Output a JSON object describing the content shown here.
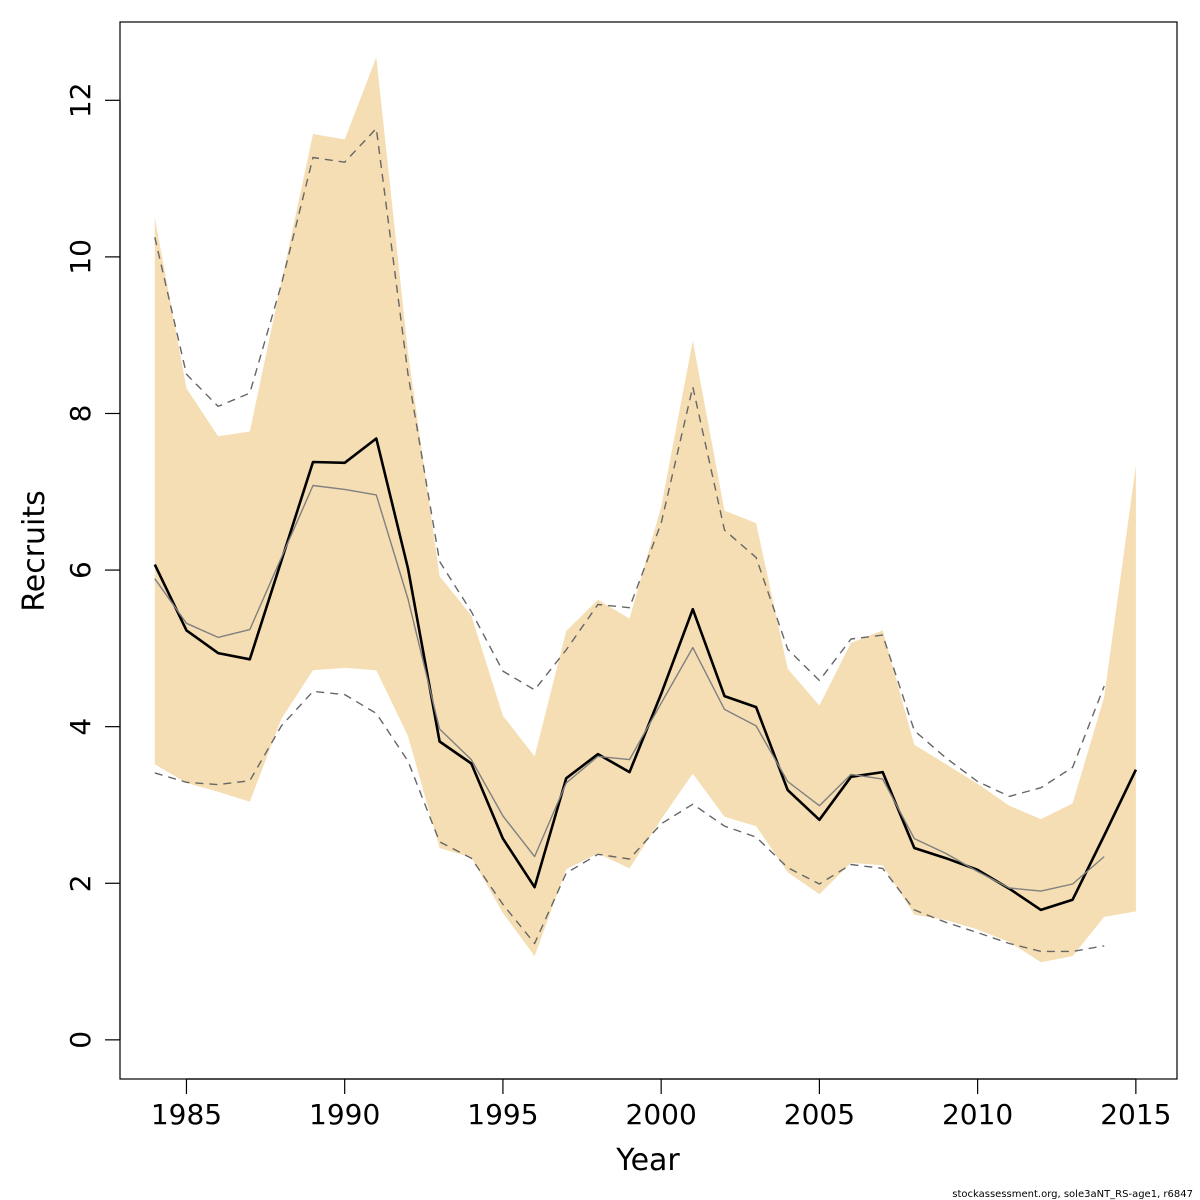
{
  "chart_data": {
    "type": "line",
    "title": "",
    "xlabel": "Year",
    "ylabel": "Recruits",
    "xlim": [
      1982.9,
      2016.3
    ],
    "ylim": [
      -0.5,
      13.0
    ],
    "x_ticks": [
      1985,
      1990,
      1995,
      2000,
      2005,
      2010,
      2015
    ],
    "y_ticks": [
      0,
      2,
      4,
      6,
      8,
      10,
      12
    ],
    "grid": false,
    "legend": "none",
    "colors": {
      "band": "#f5deb3",
      "main_line": "#000000",
      "previous_line": "#808080",
      "previous_ci": "#666666"
    },
    "band": {
      "x": [
        1984,
        1985,
        1986,
        1987,
        1988,
        1989,
        1990,
        1991,
        1992,
        1993,
        1994,
        1995,
        1996,
        1997,
        1998,
        1999,
        2000,
        2001,
        2002,
        2003,
        2004,
        2005,
        2006,
        2007,
        2008,
        2009,
        2010,
        2011,
        2012,
        2013,
        2014,
        2015
      ],
      "lower": [
        3.52,
        3.28,
        3.17,
        3.04,
        4.1,
        4.72,
        4.75,
        4.72,
        3.88,
        2.45,
        2.33,
        1.62,
        1.07,
        2.18,
        2.38,
        2.19,
        2.82,
        3.4,
        2.85,
        2.73,
        2.14,
        1.86,
        2.26,
        2.23,
        1.6,
        1.53,
        1.41,
        1.25,
        0.99,
        1.07,
        1.57,
        1.64
      ],
      "upper": [
        10.5,
        8.32,
        7.71,
        7.77,
        9.68,
        11.57,
        11.5,
        12.55,
        8.78,
        5.92,
        5.42,
        4.14,
        3.62,
        5.22,
        5.62,
        5.38,
        6.81,
        8.93,
        6.76,
        6.6,
        4.74,
        4.27,
        5.07,
        5.23,
        3.77,
        3.52,
        3.27,
        2.99,
        2.82,
        3.02,
        4.38,
        7.34
      ]
    },
    "series": [
      {
        "x": [
          1984,
          1985,
          1986,
          1987,
          1988,
          1989,
          1990,
          1991,
          1992,
          1993,
          1994,
          1995,
          1996,
          1997,
          1998,
          1999,
          2000,
          2001,
          2002,
          2003,
          2004,
          2005,
          2006,
          2007,
          2008,
          2009,
          2010,
          2011,
          2012,
          2013,
          2014,
          2015
        ],
        "values": [
          6.07,
          5.23,
          4.94,
          4.86,
          6.12,
          7.38,
          7.37,
          7.68,
          6.02,
          3.81,
          3.53,
          2.57,
          1.95,
          3.34,
          3.65,
          3.42,
          4.42,
          5.5,
          4.39,
          4.25,
          3.19,
          2.81,
          3.36,
          3.42,
          2.45,
          2.32,
          2.17,
          1.93,
          1.66,
          1.79,
          2.61,
          3.45
        ],
        "style": "solid-thick"
      },
      {
        "x": [
          1984,
          1985,
          1986,
          1987,
          1988,
          1989,
          1990,
          1991,
          1992,
          1993,
          1994,
          1995,
          1996,
          1997,
          1998,
          1999,
          2000,
          2001,
          2002,
          2003,
          2004,
          2005,
          2006,
          2007,
          2008,
          2009,
          2010,
          2011,
          2012,
          2013,
          2014
        ],
        "values": [
          5.89,
          5.32,
          5.14,
          5.24,
          6.16,
          7.08,
          7.03,
          6.96,
          5.63,
          3.97,
          3.58,
          2.86,
          2.34,
          3.28,
          3.62,
          3.58,
          4.3,
          5.01,
          4.22,
          4.01,
          3.3,
          2.99,
          3.39,
          3.33,
          2.57,
          2.38,
          2.15,
          1.94,
          1.9,
          1.99,
          2.34
        ],
        "style": "solid-thin"
      },
      {
        "x": [
          1984,
          1985,
          1986,
          1987,
          1988,
          1989,
          1990,
          1991,
          1992,
          1993,
          1994,
          1995,
          1996,
          1997,
          1998,
          1999,
          2000,
          2001,
          2002,
          2003,
          2004,
          2005,
          2006,
          2007,
          2008,
          2009,
          2010,
          2011,
          2012,
          2013,
          2014
        ],
        "values": [
          10.25,
          8.5,
          8.09,
          8.26,
          9.65,
          11.27,
          11.21,
          11.64,
          8.5,
          6.11,
          5.47,
          4.71,
          4.47,
          4.98,
          5.56,
          5.52,
          6.6,
          8.34,
          6.51,
          6.16,
          4.99,
          4.59,
          5.12,
          5.17,
          3.95,
          3.6,
          3.3,
          3.11,
          3.22,
          3.48,
          4.52
        ],
        "style": "dashed"
      },
      {
        "x": [
          1984,
          1985,
          1986,
          1987,
          1988,
          1989,
          1990,
          1991,
          1992,
          1993,
          1994,
          1995,
          1996,
          1997,
          1998,
          1999,
          2000,
          2001,
          2002,
          2003,
          2004,
          2005,
          2006,
          2007,
          2008,
          2009,
          2010,
          2011,
          2012,
          2013,
          2014
        ],
        "values": [
          3.41,
          3.29,
          3.26,
          3.31,
          4.01,
          4.45,
          4.41,
          4.17,
          3.56,
          2.53,
          2.32,
          1.73,
          1.23,
          2.13,
          2.37,
          2.31,
          2.76,
          3.01,
          2.73,
          2.59,
          2.2,
          1.99,
          2.24,
          2.19,
          1.66,
          1.5,
          1.37,
          1.23,
          1.13,
          1.13,
          1.2
        ],
        "style": "dashed"
      }
    ]
  },
  "footer_text": "stockassessment.org, sole3aNT_RS-age1, r6847"
}
